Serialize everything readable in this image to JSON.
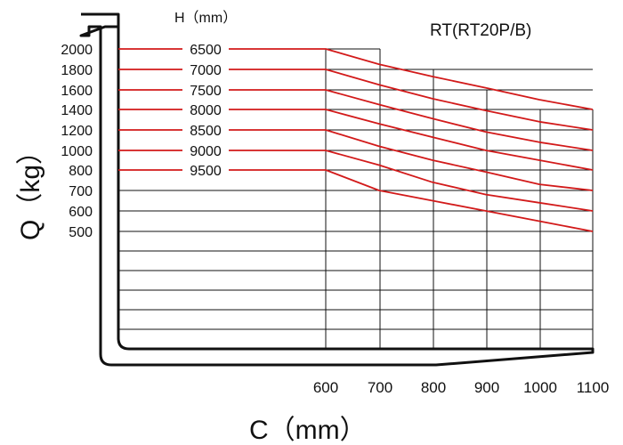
{
  "chart_data": {
    "type": "line",
    "title": "RT(RT20P/B)",
    "xlabel": "C（mm）",
    "ylabel": "Q（kg）",
    "series_label": "H（mm）",
    "x_ticks": [
      "600",
      "700",
      "800",
      "900",
      "1000",
      "1100"
    ],
    "y_ticks": [
      "2000",
      "1800",
      "1600",
      "1400",
      "1200",
      "1000",
      "800",
      "700",
      "600",
      "500"
    ],
    "series": [
      {
        "name": "6500",
        "x": [
          0,
          600,
          700,
          800,
          900,
          1000,
          1100
        ],
        "y": [
          2000,
          2000,
          1850,
          1730,
          1620,
          1500,
          1400
        ]
      },
      {
        "name": "7000",
        "x": [
          0,
          600,
          700,
          800,
          900,
          1000,
          1100
        ],
        "y": [
          1800,
          1800,
          1650,
          1510,
          1390,
          1280,
          1200
        ]
      },
      {
        "name": "7500",
        "x": [
          0,
          600,
          700,
          800,
          900,
          1000,
          1100
        ],
        "y": [
          1600,
          1600,
          1450,
          1310,
          1180,
          1080,
          1000
        ]
      },
      {
        "name": "8000",
        "x": [
          0,
          600,
          700,
          800,
          900,
          1000,
          1100
        ],
        "y": [
          1400,
          1400,
          1260,
          1130,
          1000,
          900,
          800
        ]
      },
      {
        "name": "8500",
        "x": [
          0,
          600,
          700,
          800,
          900,
          1000,
          1100
        ],
        "y": [
          1200,
          1200,
          1040,
          900,
          790,
          730,
          700
        ]
      },
      {
        "name": "9000",
        "x": [
          0,
          600,
          700,
          800,
          900,
          1000,
          1100
        ],
        "y": [
          1000,
          1000,
          850,
          740,
          680,
          640,
          600
        ]
      },
      {
        "name": "9500",
        "x": [
          0,
          600,
          700,
          800,
          900,
          1000,
          1100
        ],
        "y": [
          800,
          800,
          700,
          650,
          600,
          550,
          500
        ]
      }
    ],
    "grid": true,
    "colors": {
      "curve": "#d21a1a",
      "grid": "#111111",
      "fork": "#111111"
    }
  }
}
